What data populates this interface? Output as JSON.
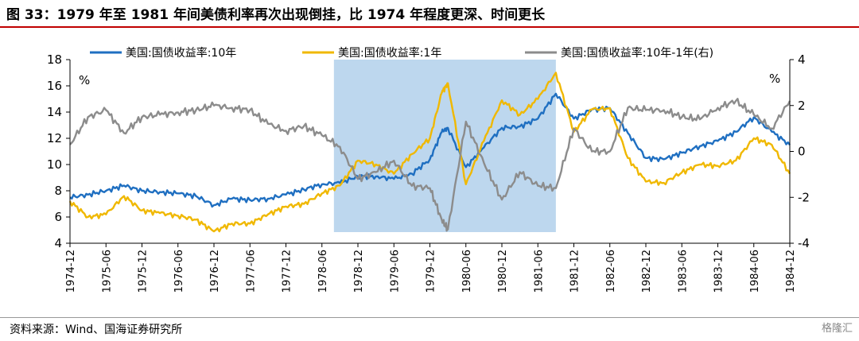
{
  "header": {
    "title": "图 33：1979 年至 1981 年间美债利率再次出现倒挂，比 1974 年程度更深、时间更长"
  },
  "footer": {
    "source": "资料来源：Wind、国海证券研究所",
    "watermark": "格隆汇"
  },
  "chart_data": {
    "type": "line",
    "title": "图 33：1979 年至 1981 年间美债利率再次出现倒挂，比 1974 年程度更深、时间更长",
    "y_left_unit": "%",
    "y_right_unit": "%",
    "ylim_left": [
      4,
      18
    ],
    "ylim_right": [
      -4,
      4
    ],
    "y_left_ticks": [
      "4",
      "6",
      "8",
      "10",
      "12",
      "14",
      "16",
      "18"
    ],
    "y_right_ticks": [
      "-4",
      "-2",
      "0",
      "2",
      "4"
    ],
    "x_ticks": [
      "1974-12",
      "1975-06",
      "1975-12",
      "1976-06",
      "1976-12",
      "1977-06",
      "1977-12",
      "1978-06",
      "1978-12",
      "1979-06",
      "1979-12",
      "1980-06",
      "1980-12",
      "1981-06",
      "1981-12",
      "1982-06",
      "1982-12",
      "1983-06",
      "1983-12",
      "1984-06",
      "1984-12"
    ],
    "x_range": [
      "1974-12",
      "1984-12"
    ],
    "legend_position": "top",
    "shaded_region": {
      "start": "1978-08",
      "end": "1981-09",
      "color": "#bdd7ee"
    },
    "series": [
      {
        "name": "美国:国债收益率:10年",
        "axis": "left",
        "color": "#1f6fc1",
        "points": [
          [
            "1974-12",
            7.5
          ],
          [
            "1975-03",
            7.7
          ],
          [
            "1975-06",
            8.0
          ],
          [
            "1975-09",
            8.4
          ],
          [
            "1975-12",
            8.0
          ],
          [
            "1976-03",
            7.9
          ],
          [
            "1976-06",
            7.8
          ],
          [
            "1976-09",
            7.6
          ],
          [
            "1976-12",
            6.9
          ],
          [
            "1977-03",
            7.4
          ],
          [
            "1977-06",
            7.3
          ],
          [
            "1977-09",
            7.4
          ],
          [
            "1977-12",
            7.7
          ],
          [
            "1978-03",
            8.1
          ],
          [
            "1978-06",
            8.5
          ],
          [
            "1978-09",
            8.6
          ],
          [
            "1978-12",
            9.1
          ],
          [
            "1979-03",
            9.1
          ],
          [
            "1979-06",
            8.9
          ],
          [
            "1979-09",
            9.3
          ],
          [
            "1979-12",
            10.4
          ],
          [
            "1980-02",
            12.5
          ],
          [
            "1980-03",
            12.8
          ],
          [
            "1980-06",
            9.8
          ],
          [
            "1980-09",
            11.3
          ],
          [
            "1980-12",
            12.8
          ],
          [
            "1981-03",
            12.9
          ],
          [
            "1981-06",
            13.5
          ],
          [
            "1981-09",
            15.4
          ],
          [
            "1981-12",
            13.5
          ],
          [
            "1982-03",
            14.2
          ],
          [
            "1982-06",
            14.3
          ],
          [
            "1982-09",
            12.4
          ],
          [
            "1982-12",
            10.5
          ],
          [
            "1983-03",
            10.4
          ],
          [
            "1983-06",
            10.9
          ],
          [
            "1983-09",
            11.4
          ],
          [
            "1983-12",
            11.8
          ],
          [
            "1984-03",
            12.5
          ],
          [
            "1984-06",
            13.6
          ],
          [
            "1984-09",
            12.5
          ],
          [
            "1984-12",
            11.5
          ]
        ]
      },
      {
        "name": "美国:国债收益率:1年",
        "axis": "left",
        "color": "#f0b800",
        "points": [
          [
            "1974-12",
            7.2
          ],
          [
            "1975-03",
            6.0
          ],
          [
            "1975-06",
            6.2
          ],
          [
            "1975-09",
            7.6
          ],
          [
            "1975-12",
            6.5
          ],
          [
            "1976-03",
            6.3
          ],
          [
            "1976-06",
            6.1
          ],
          [
            "1976-09",
            5.8
          ],
          [
            "1976-12",
            4.9
          ],
          [
            "1977-03",
            5.5
          ],
          [
            "1977-06",
            5.5
          ],
          [
            "1977-09",
            6.2
          ],
          [
            "1977-12",
            6.8
          ],
          [
            "1978-03",
            7.0
          ],
          [
            "1978-06",
            7.8
          ],
          [
            "1978-09",
            8.4
          ],
          [
            "1978-12",
            10.3
          ],
          [
            "1979-03",
            10.0
          ],
          [
            "1979-06",
            9.3
          ],
          [
            "1979-09",
            10.8
          ],
          [
            "1979-12",
            12.0
          ],
          [
            "1980-02",
            15.5
          ],
          [
            "1980-03",
            16.2
          ],
          [
            "1980-06",
            8.5
          ],
          [
            "1980-09",
            11.8
          ],
          [
            "1980-12",
            14.9
          ],
          [
            "1981-03",
            13.8
          ],
          [
            "1981-06",
            15.0
          ],
          [
            "1981-09",
            17.0
          ],
          [
            "1981-12",
            12.5
          ],
          [
            "1982-03",
            14.2
          ],
          [
            "1982-06",
            14.3
          ],
          [
            "1982-09",
            10.5
          ],
          [
            "1982-12",
            8.7
          ],
          [
            "1983-03",
            8.6
          ],
          [
            "1983-06",
            9.4
          ],
          [
            "1983-09",
            10.0
          ],
          [
            "1983-12",
            9.9
          ],
          [
            "1984-03",
            10.3
          ],
          [
            "1984-06",
            12.0
          ],
          [
            "1984-09",
            11.5
          ],
          [
            "1984-12",
            9.3
          ]
        ]
      },
      {
        "name": "美国:国债收益率:10年-1年(右)",
        "axis": "right",
        "color": "#8c8c8c",
        "points": [
          [
            "1974-12",
            0.3
          ],
          [
            "1975-03",
            1.5
          ],
          [
            "1975-06",
            1.8
          ],
          [
            "1975-09",
            0.8
          ],
          [
            "1975-12",
            1.5
          ],
          [
            "1976-03",
            1.6
          ],
          [
            "1976-06",
            1.7
          ],
          [
            "1976-09",
            1.8
          ],
          [
            "1976-12",
            2.0
          ],
          [
            "1977-03",
            1.9
          ],
          [
            "1977-06",
            1.8
          ],
          [
            "1977-09",
            1.2
          ],
          [
            "1977-12",
            0.9
          ],
          [
            "1978-03",
            1.1
          ],
          [
            "1978-06",
            0.7
          ],
          [
            "1978-09",
            0.2
          ],
          [
            "1978-12",
            -1.2
          ],
          [
            "1979-03",
            -0.9
          ],
          [
            "1979-06",
            -0.4
          ],
          [
            "1979-09",
            -1.5
          ],
          [
            "1979-12",
            -1.6
          ],
          [
            "1980-02",
            -3.0
          ],
          [
            "1980-03",
            -3.4
          ],
          [
            "1980-06",
            1.3
          ],
          [
            "1980-09",
            -0.5
          ],
          [
            "1980-12",
            -2.1
          ],
          [
            "1981-03",
            -0.9
          ],
          [
            "1981-06",
            -1.5
          ],
          [
            "1981-09",
            -1.6
          ],
          [
            "1981-12",
            1.0
          ],
          [
            "1982-03",
            0.0
          ],
          [
            "1982-06",
            0.0
          ],
          [
            "1982-09",
            1.9
          ],
          [
            "1982-12",
            1.8
          ],
          [
            "1983-03",
            1.8
          ],
          [
            "1983-06",
            1.5
          ],
          [
            "1983-09",
            1.4
          ],
          [
            "1983-12",
            1.9
          ],
          [
            "1984-03",
            2.2
          ],
          [
            "1984-06",
            1.6
          ],
          [
            "1984-09",
            1.0
          ],
          [
            "1984-12",
            2.2
          ]
        ]
      }
    ]
  }
}
